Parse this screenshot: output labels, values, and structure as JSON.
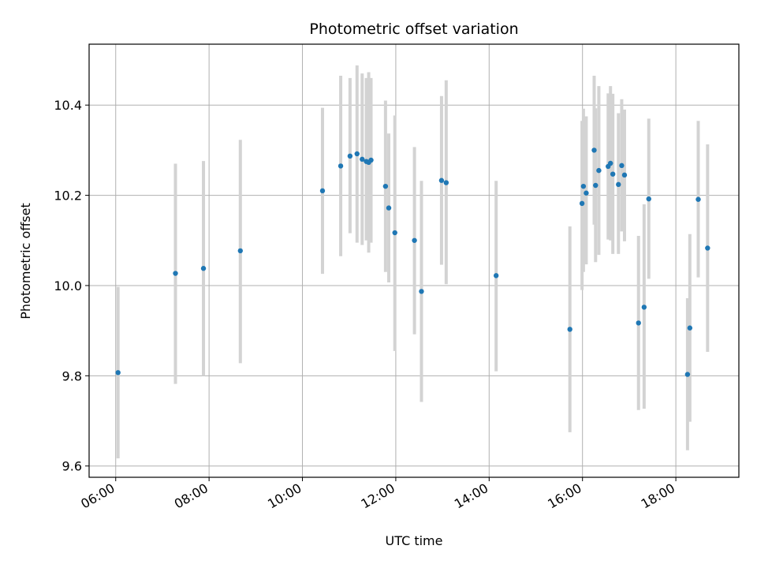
{
  "chart_data": {
    "type": "scatter",
    "title": "Photometric offset variation",
    "xlabel": "UTC time",
    "ylabel": "Photometric offset",
    "x_unit": "hours UTC",
    "xlim": [
      5.43,
      19.35
    ],
    "ylim": [
      9.575,
      10.535
    ],
    "x_ticks": [
      {
        "value": 6,
        "label": "06:00"
      },
      {
        "value": 8,
        "label": "08:00"
      },
      {
        "value": 10,
        "label": "10:00"
      },
      {
        "value": 12,
        "label": "12:00"
      },
      {
        "value": 14,
        "label": "14:00"
      },
      {
        "value": 16,
        "label": "16:00"
      },
      {
        "value": 18,
        "label": "18:00"
      }
    ],
    "y_ticks": [
      {
        "value": 9.6,
        "label": "9.6"
      },
      {
        "value": 9.8,
        "label": "9.8"
      },
      {
        "value": 10.0,
        "label": "10.0"
      },
      {
        "value": 10.2,
        "label": "10.2"
      },
      {
        "value": 10.4,
        "label": "10.4"
      }
    ],
    "grid": true,
    "colors": {
      "point": "#1f77b4",
      "errorbar": "#d3d3d3",
      "grid": "#b0b0b0"
    },
    "points": [
      {
        "t": 6.05,
        "y": 9.807,
        "lo": 9.617,
        "hi": 9.997
      },
      {
        "t": 7.28,
        "y": 10.027,
        "lo": 9.782,
        "hi": 10.27
      },
      {
        "t": 7.88,
        "y": 10.038,
        "lo": 9.8,
        "hi": 10.276
      },
      {
        "t": 8.67,
        "y": 10.077,
        "lo": 9.828,
        "hi": 10.323
      },
      {
        "t": 10.43,
        "y": 10.21,
        "lo": 10.026,
        "hi": 10.394
      },
      {
        "t": 10.82,
        "y": 10.265,
        "lo": 10.065,
        "hi": 10.465
      },
      {
        "t": 11.02,
        "y": 10.287,
        "lo": 10.116,
        "hi": 10.46
      },
      {
        "t": 11.17,
        "y": 10.292,
        "lo": 10.095,
        "hi": 10.488
      },
      {
        "t": 11.28,
        "y": 10.28,
        "lo": 10.09,
        "hi": 10.47
      },
      {
        "t": 11.37,
        "y": 10.275,
        "lo": 10.1,
        "hi": 10.46
      },
      {
        "t": 11.42,
        "y": 10.273,
        "lo": 10.073,
        "hi": 10.473
      },
      {
        "t": 11.47,
        "y": 10.278,
        "lo": 10.095,
        "hi": 10.46
      },
      {
        "t": 11.78,
        "y": 10.22,
        "lo": 10.03,
        "hi": 10.41
      },
      {
        "t": 11.85,
        "y": 10.172,
        "lo": 10.007,
        "hi": 10.337
      },
      {
        "t": 11.98,
        "y": 10.117,
        "lo": 9.855,
        "hi": 10.377
      },
      {
        "t": 12.4,
        "y": 10.1,
        "lo": 9.892,
        "hi": 10.307
      },
      {
        "t": 12.55,
        "y": 9.987,
        "lo": 9.742,
        "hi": 10.232
      },
      {
        "t": 12.98,
        "y": 10.233,
        "lo": 10.046,
        "hi": 10.42
      },
      {
        "t": 13.08,
        "y": 10.228,
        "lo": 10.003,
        "hi": 10.455
      },
      {
        "t": 14.15,
        "y": 10.022,
        "lo": 9.81,
        "hi": 10.232
      },
      {
        "t": 15.73,
        "y": 9.903,
        "lo": 9.675,
        "hi": 10.131
      },
      {
        "t": 15.99,
        "y": 10.182,
        "lo": 9.99,
        "hi": 10.365
      },
      {
        "t": 16.02,
        "y": 10.22,
        "lo": 10.03,
        "hi": 10.392
      },
      {
        "t": 16.08,
        "y": 10.205,
        "lo": 10.047,
        "hi": 10.375
      },
      {
        "t": 16.25,
        "y": 10.3,
        "lo": 10.135,
        "hi": 10.465
      },
      {
        "t": 16.28,
        "y": 10.222,
        "lo": 10.052,
        "hi": 10.393
      },
      {
        "t": 16.35,
        "y": 10.255,
        "lo": 10.068,
        "hi": 10.442
      },
      {
        "t": 16.55,
        "y": 10.264,
        "lo": 10.102,
        "hi": 10.426
      },
      {
        "t": 16.6,
        "y": 10.271,
        "lo": 10.1,
        "hi": 10.442
      },
      {
        "t": 16.65,
        "y": 10.247,
        "lo": 10.07,
        "hi": 10.425
      },
      {
        "t": 16.77,
        "y": 10.224,
        "lo": 10.07,
        "hi": 10.382
      },
      {
        "t": 16.84,
        "y": 10.266,
        "lo": 10.12,
        "hi": 10.413
      },
      {
        "t": 16.9,
        "y": 10.245,
        "lo": 10.098,
        "hi": 10.39
      },
      {
        "t": 17.2,
        "y": 9.917,
        "lo": 9.724,
        "hi": 10.11
      },
      {
        "t": 17.32,
        "y": 9.952,
        "lo": 9.727,
        "hi": 10.18
      },
      {
        "t": 17.42,
        "y": 10.192,
        "lo": 10.015,
        "hi": 10.37
      },
      {
        "t": 18.25,
        "y": 9.803,
        "lo": 9.635,
        "hi": 9.972
      },
      {
        "t": 18.3,
        "y": 9.906,
        "lo": 9.698,
        "hi": 10.114
      },
      {
        "t": 18.48,
        "y": 10.191,
        "lo": 10.018,
        "hi": 10.365
      },
      {
        "t": 18.68,
        "y": 10.083,
        "lo": 9.853,
        "hi": 10.313
      }
    ]
  }
}
